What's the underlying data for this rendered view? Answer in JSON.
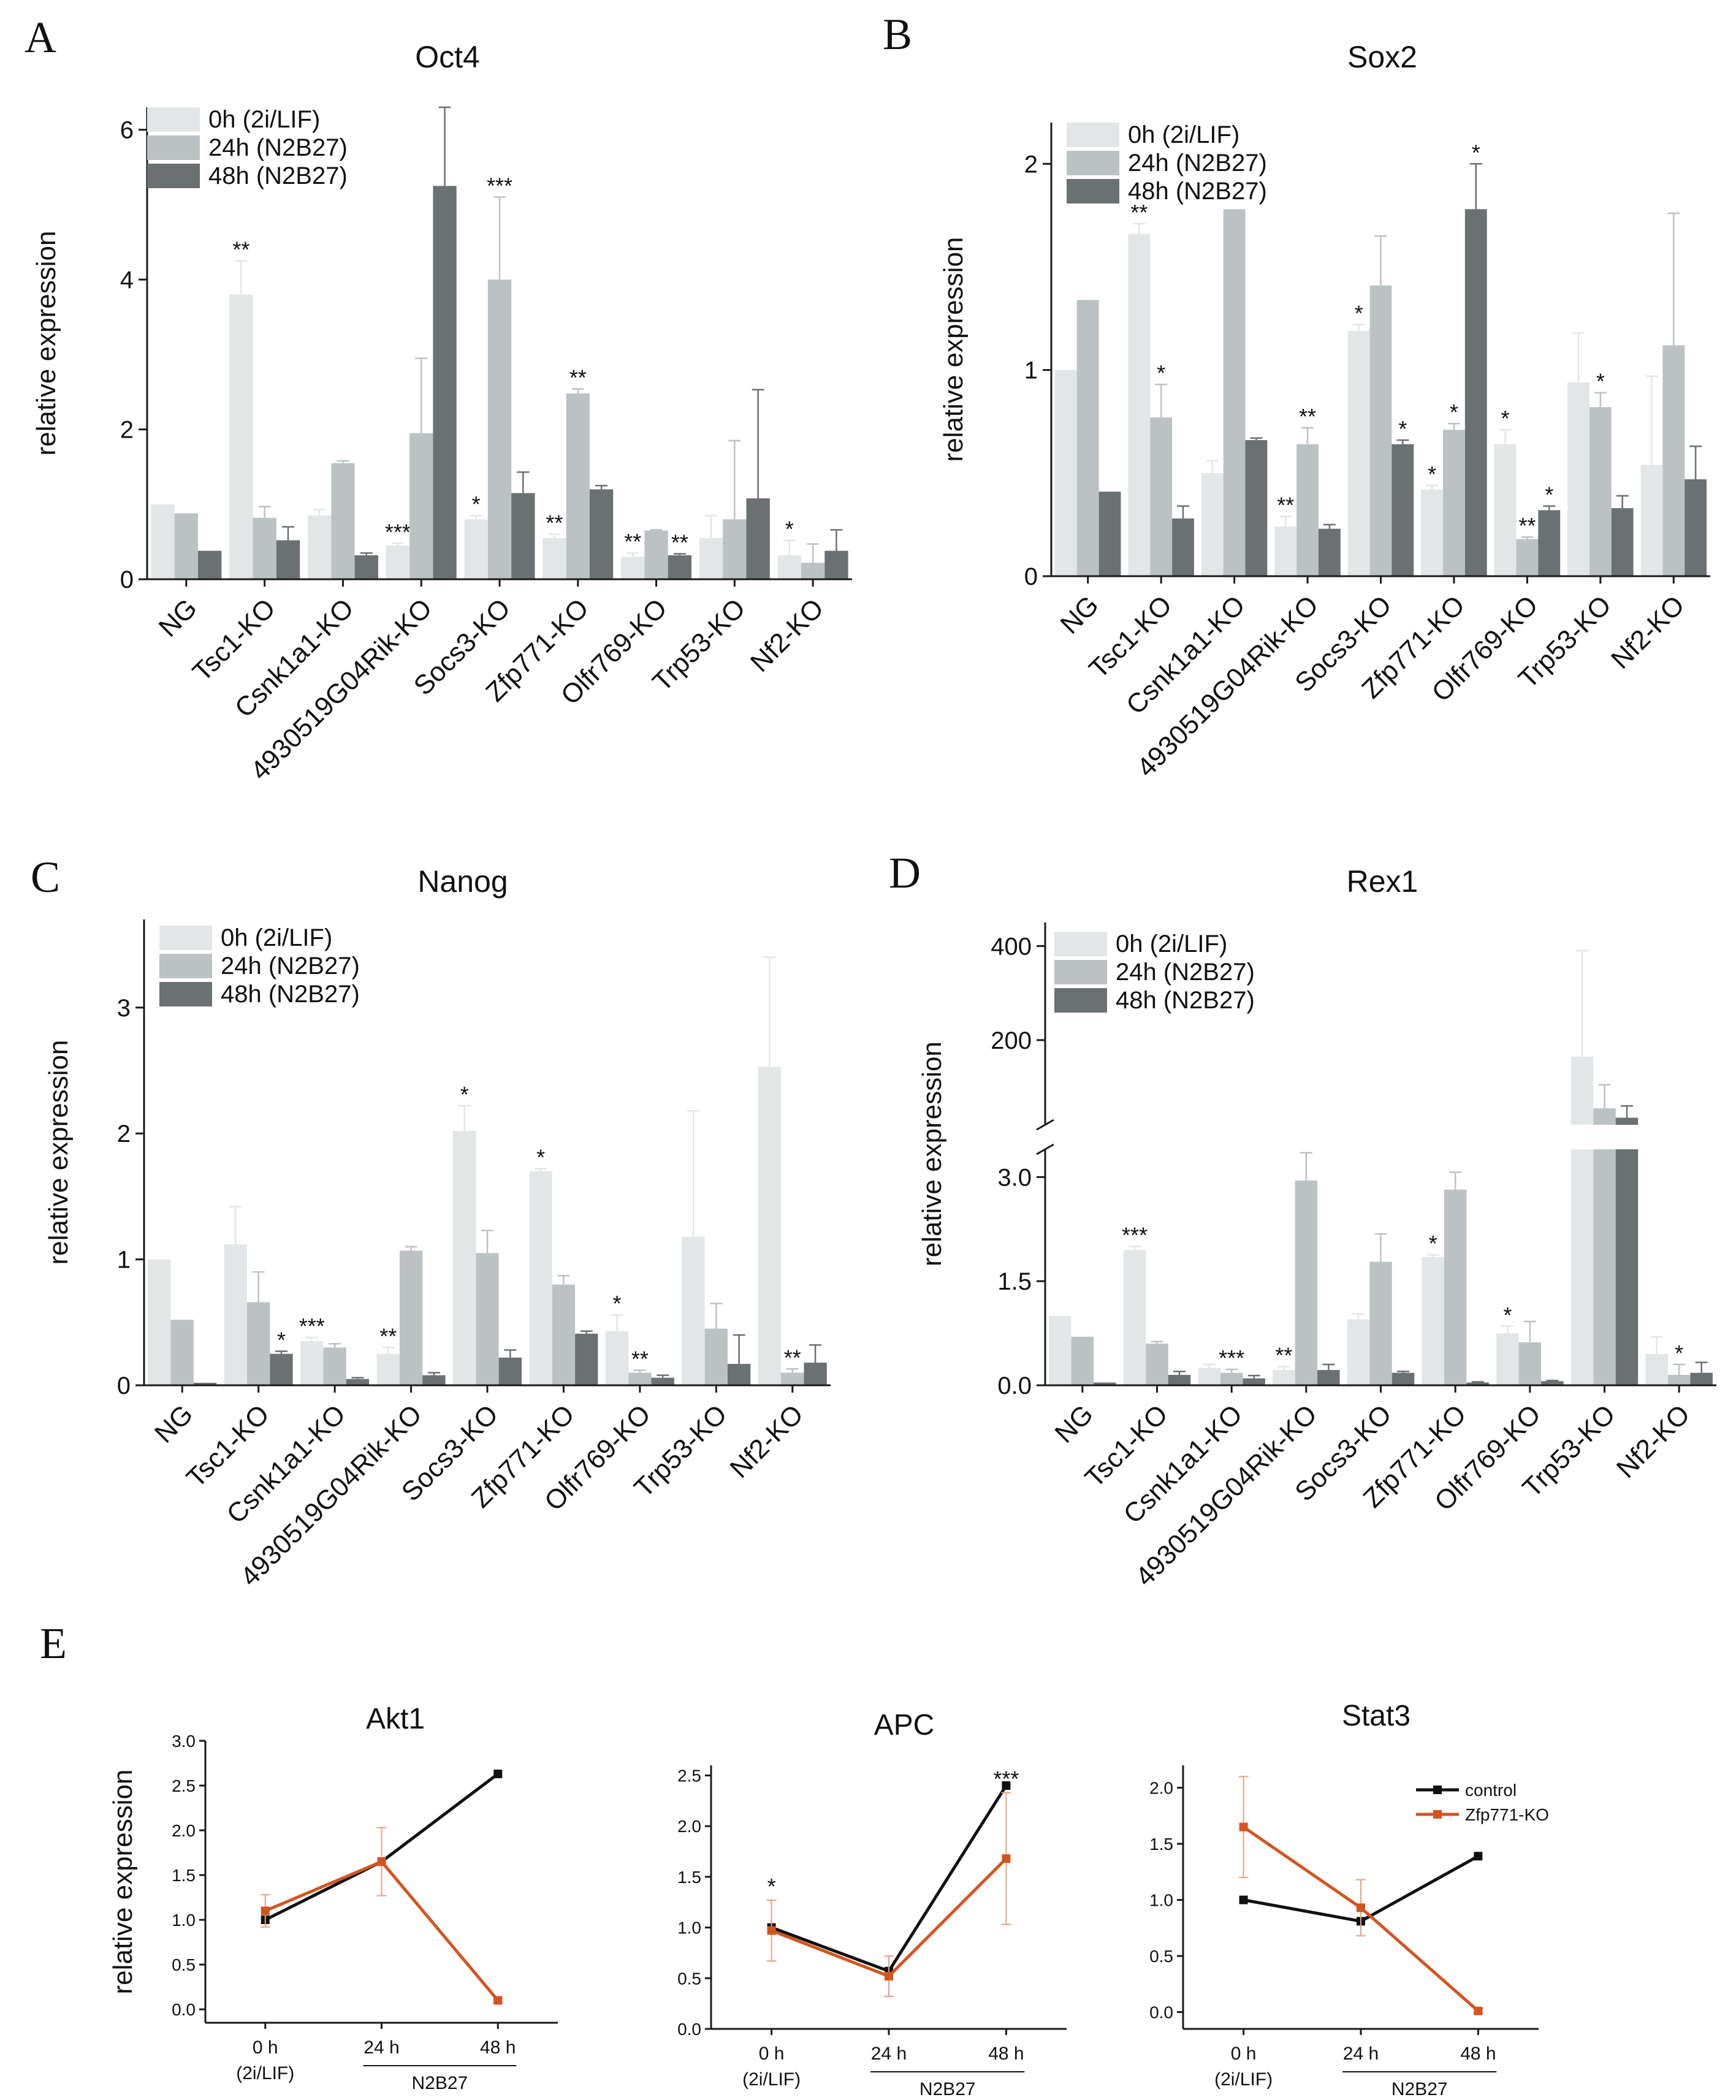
{
  "panel_labels": [
    "A",
    "B",
    "C",
    "D",
    "E"
  ],
  "colors": {
    "h0": "#e3e6e7",
    "h24": "#bcc2c3",
    "h48": "#6b7072",
    "control": "#111111",
    "ko": "#d4541f"
  },
  "chart_data": [
    {
      "id": "A",
      "type": "bar",
      "title": "Oct4",
      "ylabel": "relative expression",
      "ylim": [
        0,
        6.3
      ],
      "yticks": [
        0,
        2,
        4,
        6
      ],
      "ytick_labels": [
        "0",
        "2",
        "4",
        "6"
      ],
      "legend": [
        "0h (2i/LIF)",
        "24h (N2B27)",
        "48h (N2B27)"
      ],
      "categories": [
        "NG",
        "Tsc1-KO",
        "Csnk1a1-KO",
        "4930519G04Rik-KO",
        "Socs3-KO",
        "Zfp771-KO",
        "Olfr769-KO",
        "Trp53-KO",
        "Nf2-KO"
      ],
      "series": [
        {
          "name": "0h (2i/LIF)",
          "values": [
            1.0,
            3.8,
            0.85,
            0.45,
            0.8,
            0.55,
            0.3,
            0.55,
            0.32
          ],
          "errors": [
            0,
            0.45,
            0.08,
            0.03,
            0.05,
            0.05,
            0.05,
            0.3,
            0.2
          ],
          "sig": [
            "",
            "**",
            "",
            "***",
            "*",
            "**",
            "**",
            "",
            "*"
          ]
        },
        {
          "name": "24h (N2B27)",
          "values": [
            0.88,
            0.82,
            1.55,
            1.95,
            4.0,
            2.48,
            0.65,
            0.8,
            0.22
          ],
          "errors": [
            0,
            0.15,
            0.03,
            1.0,
            1.1,
            0.06,
            0.01,
            1.05,
            0.25
          ],
          "sig": [
            "",
            "",
            "",
            "",
            "***",
            "**",
            "",
            "",
            ""
          ]
        },
        {
          "name": "48h (N2B27)",
          "values": [
            0.38,
            0.52,
            0.32,
            5.25,
            1.15,
            1.2,
            0.32,
            1.08,
            0.38
          ],
          "errors": [
            0,
            0.18,
            0.03,
            1.05,
            0.28,
            0.05,
            0.02,
            1.45,
            0.28
          ],
          "sig": [
            "",
            "",
            "",
            "",
            "",
            "",
            "**",
            "",
            ""
          ]
        }
      ]
    },
    {
      "id": "B",
      "type": "bar",
      "title": "Sox2",
      "ylabel": "relative expression",
      "ylim": [
        0,
        2.2
      ],
      "yticks": [
        0,
        1,
        2
      ],
      "ytick_labels": [
        "0",
        "1",
        "2"
      ],
      "legend": [
        "0h (2i/LIF)",
        "24h (N2B27)",
        "48h (N2B27)"
      ],
      "categories": [
        "NG",
        "Tsc1-KO",
        "Csnk1a1-KO",
        "4930519G04Rik-KO",
        "Socs3-KO",
        "Zfp771-KO",
        "Olfr769-KO",
        "Trp53-KO",
        "Nf2-KO"
      ],
      "series": [
        {
          "name": "0h (2i/LIF)",
          "values": [
            1.0,
            1.66,
            0.5,
            0.24,
            1.19,
            0.42,
            0.64,
            0.94,
            0.54
          ],
          "errors": [
            0,
            0.05,
            0.06,
            0.05,
            0.03,
            0.02,
            0.07,
            0.24,
            0.43
          ],
          "sig": [
            "",
            "**",
            "",
            "**",
            "*",
            "*",
            "*",
            "",
            ""
          ]
        },
        {
          "name": "24h (N2B27)",
          "values": [
            1.34,
            0.77,
            1.78,
            0.64,
            1.41,
            0.71,
            0.18,
            0.82,
            1.12
          ],
          "errors": [
            0,
            0.16,
            0,
            0.08,
            0.24,
            0.03,
            0.01,
            0.07,
            0.64
          ],
          "sig": [
            "",
            "*",
            "",
            "**",
            "",
            "*",
            "**",
            "*",
            ""
          ]
        },
        {
          "name": "48h (N2B27)",
          "values": [
            0.41,
            0.28,
            0.66,
            0.23,
            0.64,
            1.78,
            0.32,
            0.33,
            0.47
          ],
          "errors": [
            0,
            0.06,
            0.01,
            0.02,
            0.02,
            0.22,
            0.02,
            0.06,
            0.16
          ],
          "sig": [
            "",
            "",
            "",
            "",
            "*",
            "*",
            "*",
            "",
            ""
          ]
        }
      ]
    },
    {
      "id": "C",
      "type": "bar",
      "title": "Nanog",
      "ylabel": "relative expression",
      "ylim": [
        0,
        3.7
      ],
      "yticks": [
        0,
        1,
        2,
        3
      ],
      "ytick_labels": [
        "0",
        "1",
        "2",
        "3"
      ],
      "legend": [
        "0h (2i/LIF)",
        "24h (N2B27)",
        "48h (N2B27)"
      ],
      "categories": [
        "NG",
        "Tsc1-KO",
        "Csnk1a1-KO",
        "4930519G04Rik-KO",
        "Socs3-KO",
        "Zfp771-KO",
        "Olfr769-KO",
        "Trp53-KO",
        "Nf2-KO"
      ],
      "series": [
        {
          "name": "0h (2i/LIF)",
          "values": [
            1.0,
            1.12,
            0.35,
            0.25,
            2.02,
            1.7,
            0.43,
            1.18,
            2.53
          ],
          "errors": [
            0,
            0.3,
            0.03,
            0.05,
            0.2,
            0.02,
            0.13,
            1.0,
            0.87
          ],
          "sig": [
            "",
            "",
            "***",
            "**",
            "*",
            "*",
            "*",
            "",
            ""
          ]
        },
        {
          "name": "24h (N2B27)",
          "values": [
            0.52,
            0.66,
            0.3,
            1.07,
            1.05,
            0.8,
            0.1,
            0.45,
            0.1
          ],
          "errors": [
            0,
            0.24,
            0.03,
            0.03,
            0.18,
            0.07,
            0.02,
            0.2,
            0.03
          ],
          "sig": [
            "",
            "",
            "",
            "",
            "",
            "",
            "**",
            "",
            "**"
          ]
        },
        {
          "name": "48h (N2B27)",
          "values": [
            0.02,
            0.25,
            0.05,
            0.08,
            0.22,
            0.41,
            0.06,
            0.17,
            0.18
          ],
          "errors": [
            0,
            0.02,
            0.01,
            0.02,
            0.06,
            0.02,
            0.02,
            0.23,
            0.14
          ],
          "sig": [
            "",
            "*",
            "",
            "",
            "",
            "",
            "",
            "",
            ""
          ]
        }
      ]
    },
    {
      "id": "D",
      "type": "bar",
      "title": "Rex1",
      "ylabel": "relative expression",
      "broken_axis": true,
      "ylim_lower": [
        0,
        3.4
      ],
      "yticks_lower": [
        0,
        1.5,
        3.0
      ],
      "ytick_labels_lower": [
        "0.0",
        "1.5",
        "3.0"
      ],
      "ylim_upper": [
        20,
        450
      ],
      "yticks_upper": [
        200,
        400
      ],
      "ytick_labels_upper": [
        "200",
        "400"
      ],
      "legend": [
        "0h (2i/LIF)",
        "24h (N2B27)",
        "48h (N2B27)"
      ],
      "categories": [
        "NG",
        "Tsc1-KO",
        "Csnk1a1-KO",
        "4930519G04Rik-KO",
        "Socs3-KO",
        "Zfp771-KO",
        "Olfr769-KO",
        "Trp53-KO",
        "Nf2-KO"
      ],
      "series": [
        {
          "name": "0h (2i/LIF)",
          "values": [
            1.0,
            1.95,
            0.25,
            0.22,
            0.95,
            1.85,
            0.75,
            165,
            0.45
          ],
          "errors": [
            0,
            0.05,
            0.05,
            0.05,
            0.08,
            0.03,
            0.1,
            225,
            0.25
          ],
          "sig": [
            "",
            "***",
            "",
            "**",
            "",
            "*",
            "*",
            "",
            ""
          ]
        },
        {
          "name": "24h (N2B27)",
          "values": [
            0.7,
            0.6,
            0.18,
            2.95,
            1.78,
            2.82,
            0.62,
            55,
            0.15
          ],
          "errors": [
            0,
            0.03,
            0.05,
            0.4,
            0.4,
            0.25,
            0.3,
            50,
            0.15
          ],
          "sig": [
            "",
            "",
            "***",
            "",
            "",
            "",
            "",
            "",
            "*"
          ]
        },
        {
          "name": "48h (N2B27)",
          "values": [
            0.04,
            0.15,
            0.1,
            0.22,
            0.18,
            0.04,
            0.06,
            35,
            0.18
          ],
          "errors": [
            0,
            0.05,
            0.04,
            0.08,
            0.02,
            0.01,
            0.01,
            25,
            0.15
          ],
          "sig": [
            "",
            "",
            "",
            "",
            "",
            "",
            "",
            "",
            ""
          ]
        }
      ]
    },
    {
      "id": "E1",
      "type": "line",
      "title": "Akt1",
      "ylabel": "relative expression",
      "ylim": [
        -0.15,
        3.0
      ],
      "yticks": [
        0.0,
        0.5,
        1.0,
        1.5,
        2.0,
        2.5,
        3.0
      ],
      "ytick_labels": [
        "0.0",
        "0.5",
        "1.0",
        "1.5",
        "2.0",
        "2.5",
        "3.0"
      ],
      "x_labels": [
        "0 h",
        "24 h",
        "48 h"
      ],
      "x_sublabel": "(2i/LIF)",
      "x_group_label": "N2B27",
      "series": [
        {
          "name": "control",
          "values": [
            1.0,
            1.65,
            2.63
          ],
          "errors": [
            0,
            0,
            0
          ]
        },
        {
          "name": "Zfp771-KO",
          "values": [
            1.1,
            1.65,
            0.1
          ],
          "errors": [
            0.18,
            0.38,
            0.02
          ]
        }
      ],
      "annotations": []
    },
    {
      "id": "E2",
      "type": "line",
      "title": "APC",
      "ylabel": "",
      "ylim": [
        0.0,
        2.6
      ],
      "yticks": [
        0.0,
        0.5,
        1.0,
        1.5,
        2.0,
        2.5
      ],
      "ytick_labels": [
        "0.0",
        "0.5",
        "1.0",
        "1.5",
        "2.0",
        "2.5"
      ],
      "x_labels": [
        "0 h",
        "24 h",
        "48 h"
      ],
      "x_sublabel": "(2i/LIF)",
      "x_group_label": "N2B27",
      "series": [
        {
          "name": "control",
          "values": [
            1.0,
            0.57,
            2.4
          ],
          "errors": [
            0,
            0,
            0
          ]
        },
        {
          "name": "Zfp771-KO",
          "values": [
            0.97,
            0.52,
            1.68
          ],
          "errors": [
            0.3,
            0.2,
            0.65
          ]
        }
      ],
      "annotations": [
        {
          "x": 0,
          "text": "*"
        },
        {
          "x": 2,
          "text": "***"
        }
      ]
    },
    {
      "id": "E3",
      "type": "line",
      "title": "Stat3",
      "ylabel": "",
      "ylim": [
        -0.15,
        2.2
      ],
      "yticks": [
        0.0,
        0.5,
        1.0,
        1.5,
        2.0
      ],
      "ytick_labels": [
        "0.0",
        "0.5",
        "1.0",
        "1.5",
        "2.0"
      ],
      "x_labels": [
        "0 h",
        "24 h",
        "48 h"
      ],
      "x_sublabel": "(2i/LIF)",
      "x_group_label": "N2B27",
      "legend": [
        "control",
        "Zfp771-KO"
      ],
      "series": [
        {
          "name": "control",
          "values": [
            1.0,
            0.81,
            1.39
          ],
          "errors": [
            0,
            0,
            0
          ]
        },
        {
          "name": "Zfp771-KO",
          "values": [
            1.65,
            0.93,
            0.01
          ],
          "errors": [
            0.45,
            0.25,
            0.02
          ]
        }
      ],
      "annotations": []
    }
  ]
}
